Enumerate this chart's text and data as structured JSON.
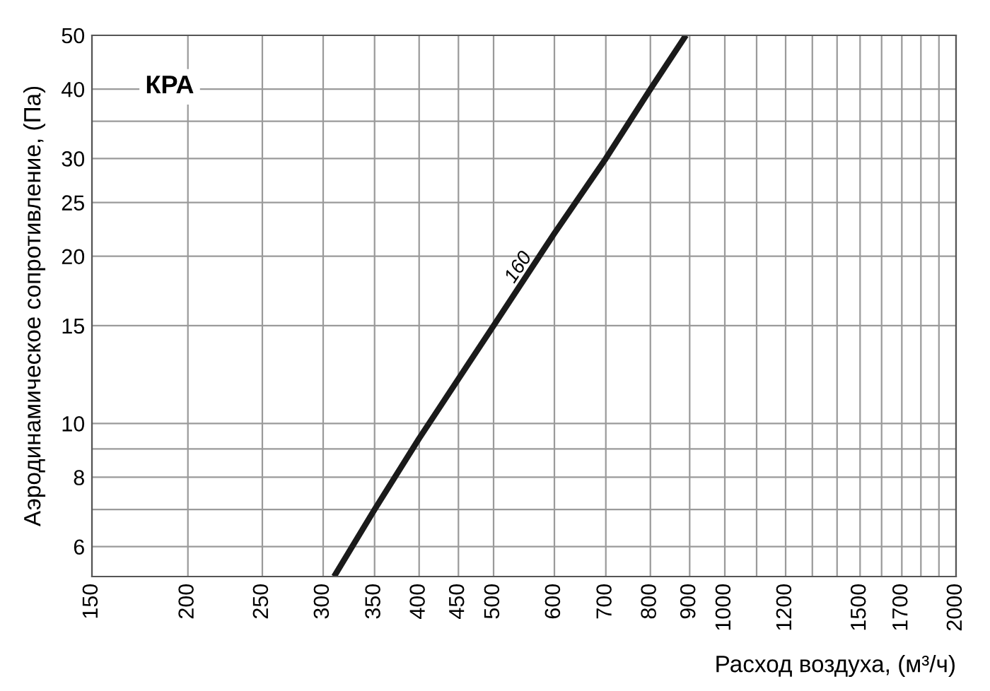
{
  "chart_data": {
    "type": "line",
    "title": "КРА",
    "xlabel": "Расход воздуха, (м³/ч)",
    "ylabel": "Аэродинамическое сопротивление, (Па)",
    "log": "xy",
    "grid": true,
    "legend": false,
    "marker": "none",
    "line_style": "solid",
    "xlim": [
      150,
      2000
    ],
    "ylim": [
      5.3,
      50
    ],
    "xticks": [
      150,
      200,
      250,
      300,
      350,
      400,
      450,
      500,
      600,
      700,
      800,
      900,
      1000,
      {
        "value": 1100,
        "label": null
      },
      1200,
      {
        "value": 1300,
        "label": null
      },
      {
        "value": 1400,
        "label": null
      },
      1500,
      {
        "value": 1600,
        "label": null
      },
      1700,
      {
        "value": 1800,
        "label": null
      },
      {
        "value": 1900,
        "label": null
      },
      2000
    ],
    "yticks": [
      6,
      {
        "value": 7,
        "label": null
      },
      8,
      {
        "value": 9,
        "label": null
      },
      10,
      15,
      20,
      25,
      30,
      {
        "value": 35,
        "label": null
      },
      40,
      50
    ],
    "series": [
      {
        "name": "160",
        "color": "#1a1a1a",
        "x": [
          310,
          350,
          400,
          500,
          600,
          700,
          800,
          890
        ],
        "values": [
          5.3,
          7,
          9.4,
          15,
          22,
          30,
          40,
          50
        ]
      }
    ]
  }
}
